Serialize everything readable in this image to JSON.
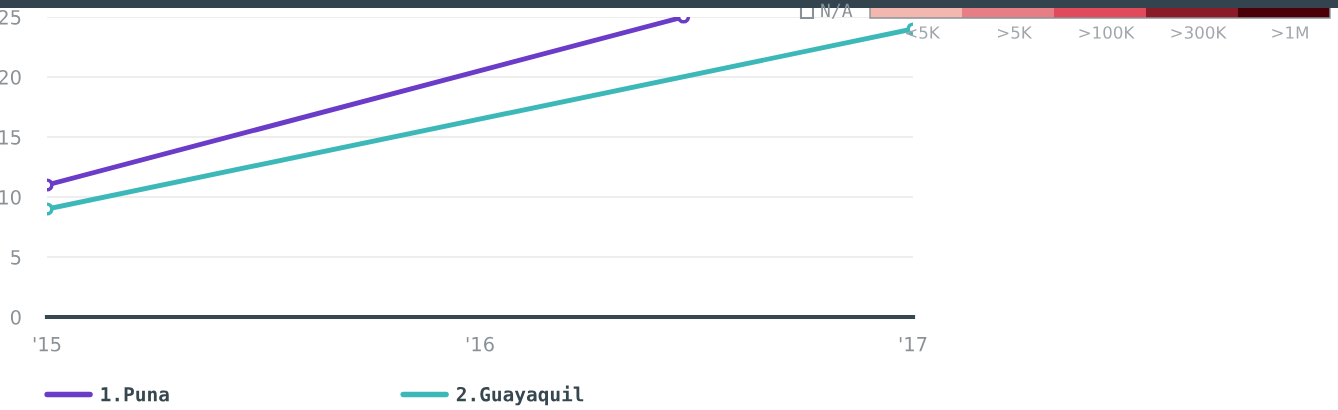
{
  "chart_data": [
    {
      "type": "line",
      "xlim": [
        2015,
        2017
      ],
      "xticks": [
        {
          "value": 2015,
          "label": "'15"
        },
        {
          "value": 2016,
          "label": "'16"
        },
        {
          "value": 2017,
          "label": "'17"
        }
      ],
      "series": [
        {
          "name": "1.Puna",
          "color": "#6a3cc8",
          "x": [
            2015,
            2016.47
          ],
          "values": [
            11,
            25
          ]
        },
        {
          "name": "2.Guayaquil",
          "color": "#3db8b8",
          "x": [
            2015,
            2017
          ],
          "values": [
            9,
            24
          ]
        }
      ],
      "ylim": [
        0,
        25
      ],
      "yticks": [
        0,
        5,
        10,
        15,
        20,
        25
      ],
      "grid": "y",
      "legend": "bottom",
      "marker": "circle"
    },
    {
      "type": "other",
      "categories": [
        "N/A",
        "<5K",
        ">5K",
        ">100K",
        ">300K",
        ">1M"
      ],
      "colors": [
        "#ffffff",
        "#f2b8b0",
        "#e57f85",
        "#e04a5a",
        "#8a1c2a",
        "#4a0008"
      ]
    }
  ]
}
